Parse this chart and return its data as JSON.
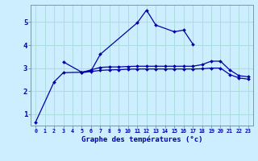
{
  "xlabel": "Graphe des températures (°c)",
  "background_color": "#cceeff",
  "grid_color": "#aadddd",
  "line_color": "#0000aa",
  "hours": [
    0,
    1,
    2,
    3,
    4,
    5,
    6,
    7,
    8,
    9,
    10,
    11,
    12,
    13,
    14,
    15,
    16,
    17,
    18,
    19,
    20,
    21,
    22,
    23
  ],
  "curve1": [
    0.65,
    null,
    2.4,
    2.8,
    null,
    2.82,
    2.88,
    3.6,
    null,
    null,
    null,
    4.97,
    5.52,
    4.87,
    null,
    4.58,
    4.65,
    4.05,
    null,
    null,
    null,
    null,
    null,
    null
  ],
  "curve2": [
    null,
    null,
    null,
    3.27,
    null,
    2.82,
    2.92,
    3.03,
    3.05,
    3.05,
    3.07,
    3.08,
    3.08,
    3.08,
    3.08,
    3.08,
    3.08,
    3.08,
    3.15,
    3.3,
    3.3,
    2.92,
    2.67,
    2.62
  ],
  "curve3": [
    null,
    null,
    null,
    null,
    null,
    2.8,
    2.85,
    2.9,
    2.92,
    2.93,
    2.95,
    2.96,
    2.96,
    2.96,
    2.96,
    2.96,
    2.96,
    2.96,
    2.97,
    3.0,
    3.0,
    2.72,
    2.57,
    2.52
  ],
  "ylim": [
    0.5,
    5.75
  ],
  "yticks": [
    1,
    2,
    3,
    4,
    5
  ],
  "xlim": [
    -0.5,
    23.5
  ]
}
